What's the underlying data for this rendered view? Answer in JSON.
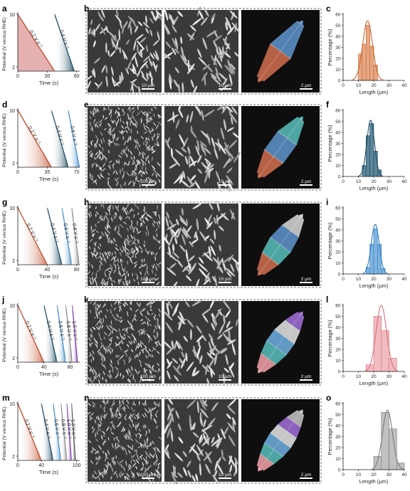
{
  "figure": {
    "rows": [
      {
        "labels": [
          "a",
          "b",
          "c"
        ],
        "potential_plot": {
          "ylabel": "Potential (V versus RHE)",
          "xlabel": "Time (s)",
          "yticks": [
            "10",
            "2"
          ],
          "xticks": [
            {
              "value": 0,
              "label": "0"
            },
            {
              "value": 30,
              "label": "30"
            },
            {
              "value": 60,
              "label": "60"
            }
          ],
          "xmax": 60,
          "sweeps": [
            {
              "start": 0,
              "end": 37.5,
              "rate": "0.2 V s⁻¹",
              "color": "#c24a2a",
              "fill": "#e0a3a3",
              "gradient": false
            },
            {
              "start": 37.5,
              "end": 57.5,
              "rate": "0.4 V s⁻¹",
              "color": "#1f4e66",
              "fill": "#1f4e66",
              "gradient": true
            }
          ]
        },
        "sem": {
          "scalebars": [
            "10 µm",
            "10 µm",
            "2 µm"
          ],
          "grain": "coarse",
          "segments": [
            {
              "color": "#c96a4c"
            },
            {
              "color": "#5b8fc4"
            }
          ]
        },
        "histogram": {
          "ylabel": "Percentage (%)",
          "xlabel": "Length (µm)",
          "yticks": [
            "0",
            "10",
            "20",
            "30",
            "40",
            "50",
            "60"
          ],
          "xticks": [
            "0",
            "10",
            "20",
            "30",
            "40"
          ],
          "color": "#c9622f",
          "fill": "#e09a6e",
          "bins": [
            {
              "x0": 10,
              "x1": 12.5,
              "pct": 24
            },
            {
              "x0": 12.5,
              "x1": 15,
              "pct": 33
            },
            {
              "x0": 15,
              "x1": 17.5,
              "pct": 50
            },
            {
              "x0": 17.5,
              "x1": 20,
              "pct": 31
            },
            {
              "x0": 20,
              "x1": 22.5,
              "pct": 14
            }
          ],
          "fit_mean": 16,
          "fit_sd": 3.2,
          "fit_peak": 54
        }
      },
      {
        "labels": [
          "d",
          "e",
          "f"
        ],
        "potential_plot": {
          "ylabel": "Potential (V versus RHE)",
          "xlabel": "Time (s)",
          "yticks": [
            "10",
            "2"
          ],
          "xticks": [
            {
              "value": 0,
              "label": "0"
            },
            {
              "value": 35,
              "label": "35"
            },
            {
              "value": 70,
              "label": "70"
            }
          ],
          "xmax": 70,
          "sweeps": [
            {
              "start": 0,
              "end": 40,
              "rate": "0.2 V s⁻¹",
              "color": "#c24a2a",
              "fill": "#c96a4c",
              "gradient": true
            },
            {
              "start": 40,
              "end": 60,
              "rate": "0.4 V s⁻¹",
              "color": "#1f4e66",
              "fill": "#1f4e66",
              "gradient": true
            },
            {
              "start": 60,
              "end": 73.3,
              "rate": "0.6 V s⁻¹",
              "color": "#4a90c8",
              "fill": "#4a90c8",
              "gradient": true
            }
          ]
        },
        "sem": {
          "scalebars": [
            "100 µm",
            "10 µm",
            "2 µm"
          ],
          "grain": "fine",
          "segments": [
            {
              "color": "#c96a4c"
            },
            {
              "color": "#5b8fc4"
            },
            {
              "color": "#55b7b4"
            }
          ]
        },
        "histogram": {
          "ylabel": "Percentage (%)",
          "xlabel": "Length (µm)",
          "yticks": [
            "0",
            "10",
            "20",
            "30",
            "40",
            "50",
            "60"
          ],
          "xticks": [
            "0",
            "10",
            "20",
            "30",
            "40"
          ],
          "color": "#1f4e66",
          "fill": "#3f6f86",
          "bins": [
            {
              "x0": 12.5,
              "x1": 15,
              "pct": 10
            },
            {
              "x0": 15,
              "x1": 17.5,
              "pct": 37
            },
            {
              "x0": 17.5,
              "x1": 20,
              "pct": 48
            },
            {
              "x0": 20,
              "x1": 22.5,
              "pct": 23
            },
            {
              "x0": 22.5,
              "x1": 25,
              "pct": 6
            }
          ],
          "fit_mean": 18,
          "fit_sd": 2.5,
          "fit_peak": 51
        }
      },
      {
        "labels": [
          "g",
          "h",
          "i"
        ],
        "potential_plot": {
          "ylabel": "Potential (V versus RHE)",
          "xlabel": "Time (s)",
          "yticks": [
            "10",
            "2"
          ],
          "xticks": [
            {
              "value": 0,
              "label": "0"
            },
            {
              "value": 40,
              "label": "40"
            },
            {
              "value": 80,
              "label": "80"
            }
          ],
          "xmax": 80,
          "sweeps": [
            {
              "start": 0,
              "end": 40,
              "rate": "0.2 V s⁻¹",
              "color": "#c24a2a",
              "fill": "#c96a4c",
              "gradient": true
            },
            {
              "start": 40,
              "end": 60,
              "rate": "0.4 V s⁻¹",
              "color": "#1f4e66",
              "fill": "#1f4e66",
              "gradient": true
            },
            {
              "start": 60,
              "end": 73.3,
              "rate": "0.6 V s⁻¹",
              "color": "#4a90c8",
              "fill": "#4a90c8",
              "gradient": true
            },
            {
              "start": 73.3,
              "end": 83.3,
              "rate": "0.8 V s⁻¹",
              "color": "#8c8c8c",
              "fill": "#8c8c8c",
              "gradient": true
            }
          ]
        },
        "sem": {
          "scalebars": [
            "100 µm",
            "10 µm",
            "2 µm"
          ],
          "grain": "fine",
          "segments": [
            {
              "color": "#c96a4c"
            },
            {
              "color": "#55b7b4"
            },
            {
              "color": "#5b8fc4"
            },
            {
              "color": "#cfcfcf"
            }
          ]
        },
        "histogram": {
          "ylabel": "Percentage (%)",
          "xlabel": "Length (µm)",
          "yticks": [
            "0",
            "10",
            "20",
            "30",
            "40",
            "50",
            "60"
          ],
          "xticks": [
            "0",
            "10",
            "20",
            "30",
            "40"
          ],
          "color": "#2f80c4",
          "fill": "#6ba6d9",
          "bins": [
            {
              "x0": 15,
              "x1": 17.5,
              "pct": 6
            },
            {
              "x0": 17.5,
              "x1": 20,
              "pct": 27
            },
            {
              "x0": 20,
              "x1": 22.5,
              "pct": 41
            },
            {
              "x0": 22.5,
              "x1": 25,
              "pct": 27
            },
            {
              "x0": 25,
              "x1": 27.5,
              "pct": 5
            }
          ],
          "fit_mean": 21,
          "fit_sd": 2.6,
          "fit_peak": 45
        }
      },
      {
        "labels": [
          "j",
          "k",
          "l"
        ],
        "potential_plot": {
          "ylabel": "Potential (V versus RHE)",
          "xlabel": "Time (s)",
          "yticks": [
            "10",
            "2"
          ],
          "xticks": [
            {
              "value": 0,
              "label": "0"
            },
            {
              "value": 40,
              "label": "40"
            },
            {
              "value": 80,
              "label": "80"
            }
          ],
          "xmax": 90,
          "sweeps": [
            {
              "start": 0,
              "end": 40,
              "rate": "0.2 V s⁻¹",
              "color": "#c24a2a",
              "fill": "#c96a4c",
              "gradient": true
            },
            {
              "start": 40,
              "end": 60,
              "rate": "0.4 V s⁻¹",
              "color": "#1f4e66",
              "fill": "#1f4e66",
              "gradient": true
            },
            {
              "start": 60,
              "end": 73.3,
              "rate": "0.6 V s⁻¹",
              "color": "#4a90c8",
              "fill": "#4a90c8",
              "gradient": true
            },
            {
              "start": 73.3,
              "end": 83.3,
              "rate": "0.8 V s⁻¹",
              "color": "#8c8c8c",
              "fill": "#8c8c8c",
              "gradient": true
            },
            {
              "start": 83.3,
              "end": 91.3,
              "rate": "1.0 V s⁻¹",
              "color": "#7b3fa8",
              "fill": "#7b3fa8",
              "gradient": true
            }
          ]
        },
        "sem": {
          "scalebars": [
            "100 µm",
            "10 µm",
            "2 µm"
          ],
          "grain": "fine",
          "segments": [
            {
              "color": "#e89aa0"
            },
            {
              "color": "#55b7b4"
            },
            {
              "color": "#6aa8d8"
            },
            {
              "color": "#dcdcdc"
            },
            {
              "color": "#9b6ad1"
            }
          ]
        },
        "histogram": {
          "ylabel": "Percentage (%)",
          "xlabel": "Length (µm)",
          "yticks": [
            "0",
            "10",
            "20",
            "30",
            "40",
            "50",
            "60"
          ],
          "xticks": [
            "0",
            "10",
            "20",
            "30",
            "40"
          ],
          "color": "#d9707a",
          "fill": "#eeb0b5",
          "bins": [
            {
              "x0": 15,
              "x1": 20,
              "pct": 6
            },
            {
              "x0": 20,
              "x1": 25,
              "pct": 50
            },
            {
              "x0": 25,
              "x1": 30,
              "pct": 37
            },
            {
              "x0": 30,
              "x1": 35,
              "pct": 12
            }
          ],
          "fit_mean": 25,
          "fit_sd": 3.4,
          "fit_peak": 60
        }
      },
      {
        "labels": [
          "m",
          "n",
          "o"
        ],
        "potential_plot": {
          "ylabel": "Potential (V versus RHE)",
          "xlabel": "Time (s)",
          "yticks": [
            "10",
            "2"
          ],
          "xticks": [
            {
              "value": 0,
              "label": "0"
            },
            {
              "value": 40,
              "label": "40"
            },
            {
              "value": 100,
              "label": "100"
            }
          ],
          "xmax": 100,
          "sweeps": [
            {
              "start": 0,
              "end": 40,
              "rate": "0.2 V s⁻¹",
              "color": "#c24a2a",
              "fill": "#c96a4c",
              "gradient": true
            },
            {
              "start": 40,
              "end": 60,
              "rate": "0.4 V s⁻¹",
              "color": "#1f4e66",
              "fill": "#1f4e66",
              "gradient": true
            },
            {
              "start": 60,
              "end": 73.3,
              "rate": "0.6 V s⁻¹",
              "color": "#4a90c8",
              "fill": "#4a90c8",
              "gradient": true
            },
            {
              "start": 73.3,
              "end": 83.3,
              "rate": "0.8 V s⁻¹",
              "color": "#8c8c8c",
              "fill": "#8c8c8c",
              "gradient": true
            },
            {
              "start": 83.3,
              "end": 91.3,
              "rate": "1.0 V s⁻¹",
              "color": "#7b3fa8",
              "fill": "#7b3fa8",
              "gradient": true
            },
            {
              "start": 91.3,
              "end": 98,
              "rate": "1.2 V s⁻¹",
              "color": "#555555",
              "fill": "#555555",
              "gradient": true
            }
          ]
        },
        "sem": {
          "scalebars": [
            "100 µm",
            "10 µm",
            "2 µm"
          ],
          "grain": "fine",
          "segments": [
            {
              "color": "#e89aa0"
            },
            {
              "color": "#55b7b4"
            },
            {
              "color": "#6aa8d8"
            },
            {
              "color": "#dcdcdc"
            },
            {
              "color": "#9b6ad1"
            },
            {
              "color": "#bdbdbd"
            }
          ]
        },
        "histogram": {
          "ylabel": "Percentage (%)",
          "xlabel": "Length (µm)",
          "yticks": [
            "0",
            "10",
            "20",
            "30",
            "40",
            "50",
            "60"
          ],
          "xticks": [
            "0",
            "10",
            "20",
            "30",
            "40"
          ],
          "color": "#7a7a7a",
          "fill": "#b5b5b5",
          "bins": [
            {
              "x0": 20,
              "x1": 25,
              "pct": 12
            },
            {
              "x0": 25,
              "x1": 30,
              "pct": 52
            },
            {
              "x0": 30,
              "x1": 35,
              "pct": 37
            },
            {
              "x0": 35,
              "x1": 40,
              "pct": 6
            }
          ],
          "fit_mean": 29,
          "fit_sd": 3.3,
          "fit_peak": 54
        }
      }
    ]
  },
  "chart_data": [
    {
      "panel": "c",
      "type": "bar",
      "xlabel": "Length (µm)",
      "ylabel": "Percentage (%)",
      "ylim": [
        0,
        60
      ],
      "xlim": [
        0,
        40
      ],
      "bins": [
        [
          10,
          12.5
        ],
        [
          12.5,
          15
        ],
        [
          15,
          17.5
        ],
        [
          17.5,
          20
        ],
        [
          20,
          22.5
        ]
      ],
      "values": [
        24,
        33,
        50,
        31,
        14
      ]
    },
    {
      "panel": "f",
      "type": "bar",
      "xlabel": "Length (µm)",
      "ylabel": "Percentage (%)",
      "ylim": [
        0,
        60
      ],
      "xlim": [
        0,
        40
      ],
      "bins": [
        [
          12.5,
          15
        ],
        [
          15,
          17.5
        ],
        [
          17.5,
          20
        ],
        [
          20,
          22.5
        ],
        [
          22.5,
          25
        ]
      ],
      "values": [
        10,
        37,
        48,
        23,
        6
      ]
    },
    {
      "panel": "i",
      "type": "bar",
      "xlabel": "Length (µm)",
      "ylabel": "Percentage (%)",
      "ylim": [
        0,
        60
      ],
      "xlim": [
        0,
        40
      ],
      "bins": [
        [
          15,
          17.5
        ],
        [
          17.5,
          20
        ],
        [
          20,
          22.5
        ],
        [
          22.5,
          25
        ],
        [
          25,
          27.5
        ]
      ],
      "values": [
        6,
        27,
        41,
        27,
        5
      ]
    },
    {
      "panel": "l",
      "type": "bar",
      "xlabel": "Length (µm)",
      "ylabel": "Percentage (%)",
      "ylim": [
        0,
        60
      ],
      "xlim": [
        0,
        40
      ],
      "bins": [
        [
          15,
          20
        ],
        [
          20,
          25
        ],
        [
          25,
          30
        ],
        [
          30,
          35
        ]
      ],
      "values": [
        6,
        50,
        37,
        12
      ]
    },
    {
      "panel": "o",
      "type": "bar",
      "xlabel": "Length (µm)",
      "ylabel": "Percentage (%)",
      "ylim": [
        0,
        60
      ],
      "xlim": [
        0,
        40
      ],
      "bins": [
        [
          20,
          25
        ],
        [
          25,
          30
        ],
        [
          30,
          35
        ],
        [
          35,
          40
        ]
      ],
      "values": [
        12,
        52,
        37,
        6
      ]
    }
  ]
}
